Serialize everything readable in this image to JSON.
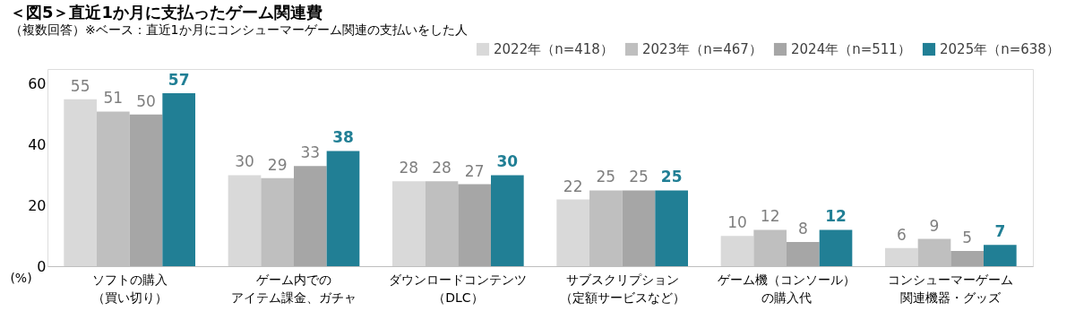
{
  "chart_data": {
    "type": "bar",
    "title": "＜図5＞直近1か月に支払ったゲーム関連費",
    "subtitle": "（複数回答）※ベース：直近1か月にコンシューマーゲーム関連の支払いをした人",
    "ylabel": "(%)",
    "categories": [
      "ソフトの購入（買い切り）",
      "ゲーム内でのアイテム課金、ガチャ",
      "ダウンロードコンテンツ（DLC）",
      "サブスクリプション（定額サービスなど）",
      "ゲーム機（コンソール）の購入代",
      "コンシューマーゲーム関連機器・グッズ"
    ],
    "series": [
      {
        "name": "2022年（n=418）",
        "color": "#d9d9d9",
        "values": [
          55,
          30,
          28,
          22,
          10,
          6
        ]
      },
      {
        "name": "2023年（n=467）",
        "color": "#bfbfbf",
        "values": [
          51,
          29,
          28,
          25,
          12,
          9
        ]
      },
      {
        "name": "2024年（n=511）",
        "color": "#a6a6a6",
        "values": [
          50,
          33,
          27,
          25,
          8,
          5
        ]
      },
      {
        "name": "2025年（n=638）",
        "color": "#217f95",
        "values": [
          57,
          38,
          30,
          25,
          12,
          7
        ]
      }
    ],
    "ylim": [
      0,
      65
    ],
    "yticks": [
      0,
      20,
      40,
      60
    ],
    "grid": false,
    "legend": "top right",
    "data_labels": true
  }
}
